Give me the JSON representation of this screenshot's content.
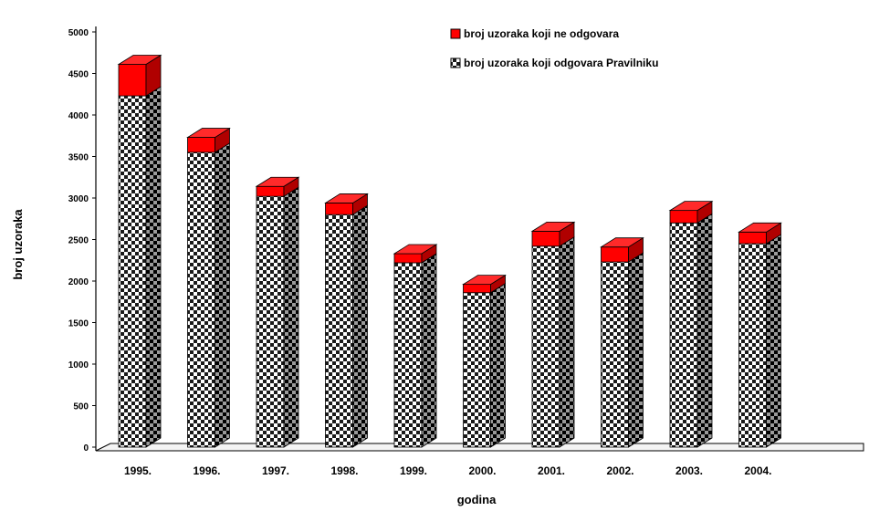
{
  "chart_data": {
    "type": "bar",
    "stacked": true,
    "three_d": true,
    "categories": [
      "1995.",
      "1996.",
      "1997.",
      "1998.",
      "1999.",
      "2000.",
      "2001.",
      "2002.",
      "2003.",
      "2004."
    ],
    "series": [
      {
        "name": "broj uzoraka koji odgovara Pravilniku",
        "values": [
          4230,
          3550,
          3020,
          2800,
          2220,
          1860,
          2420,
          2230,
          2700,
          2450
        ],
        "color": "#222222",
        "pattern": "checkerboard"
      },
      {
        "name": "broj uzoraka koji ne odgovara",
        "values": [
          380,
          180,
          120,
          140,
          110,
          100,
          180,
          180,
          150,
          140
        ],
        "color": "#ff0000"
      }
    ],
    "legend_order": [
      1,
      0
    ],
    "xlabel": "godina",
    "ylabel": "broj uzoraka",
    "ylim": [
      0,
      5000
    ],
    "yticks": [
      "0",
      "500",
      "1000",
      "1500",
      "2000",
      "2500",
      "3000",
      "3500",
      "4000",
      "4500",
      "5000"
    ],
    "grid": false,
    "legend_position": "top-right"
  }
}
